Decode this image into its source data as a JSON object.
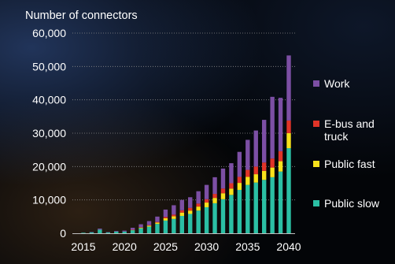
{
  "chart_data": {
    "type": "bar",
    "stacked": true,
    "title": "Number of connectors",
    "xlabel": "",
    "ylabel": "",
    "ylim": [
      0,
      60000
    ],
    "yticks": [
      "0",
      "10,000",
      "20,000",
      "30,000",
      "40,000",
      "50,000",
      "60,000"
    ],
    "ytick_values": [
      0,
      10000,
      20000,
      30000,
      40000,
      50000,
      60000
    ],
    "xticks": [
      "2015",
      "2020",
      "2025",
      "2030",
      "2035",
      "2040"
    ],
    "categories": [
      2015,
      2016,
      2017,
      2018,
      2019,
      2020,
      2021,
      2022,
      2023,
      2024,
      2025,
      2026,
      2027,
      2028,
      2029,
      2030,
      2031,
      2032,
      2033,
      2034,
      2035,
      2036,
      2037,
      2038,
      2039,
      2040
    ],
    "series": [
      {
        "name": "Public slow",
        "color": "#2bbfa4",
        "values": [
          150,
          300,
          1100,
          250,
          500,
          500,
          900,
          1500,
          2000,
          2800,
          3800,
          4300,
          5200,
          5800,
          6800,
          7800,
          9000,
          10200,
          11500,
          13000,
          14500,
          15200,
          16000,
          16800,
          18500,
          25500
        ]
      },
      {
        "name": "Public fast",
        "color": "#f7e11c",
        "values": [
          0,
          0,
          0,
          0,
          0,
          0,
          100,
          200,
          300,
          400,
          700,
          800,
          1000,
          1000,
          1200,
          1400,
          1600,
          1800,
          1900,
          2100,
          2400,
          2500,
          2700,
          2900,
          3100,
          4500
        ]
      },
      {
        "name": "E-bus and truck",
        "color": "#e03428",
        "values": [
          0,
          0,
          0,
          0,
          0,
          0,
          50,
          100,
          150,
          200,
          400,
          500,
          700,
          800,
          900,
          1000,
          1200,
          1400,
          1600,
          1800,
          2100,
          2300,
          2500,
          2700,
          3000,
          3800
        ]
      },
      {
        "name": "Work",
        "color": "#7c4fa4",
        "values": [
          0,
          100,
          300,
          100,
          200,
          300,
          600,
          900,
          1200,
          1600,
          2200,
          2800,
          3100,
          3200,
          3700,
          4300,
          5000,
          6000,
          6000,
          7500,
          9000,
          10800,
          12800,
          18500,
          16000,
          19500
        ]
      }
    ],
    "legend": {
      "placement": "right",
      "order": [
        "Work",
        "E-bus and truck",
        "Public fast",
        "Public slow"
      ]
    },
    "grid": {
      "horizontal": true,
      "style": "dotted",
      "color": "#8a8a8a"
    },
    "axis_color": "#bfbfbf"
  }
}
